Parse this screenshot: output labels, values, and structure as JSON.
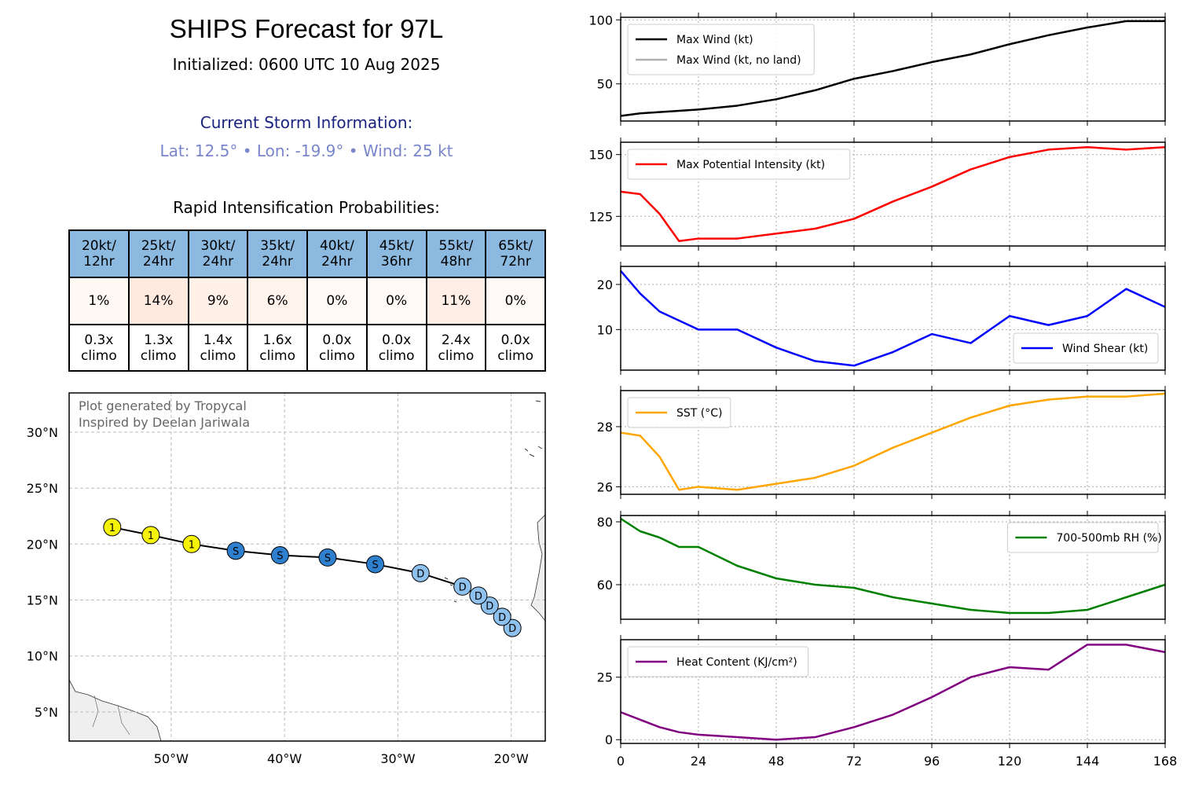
{
  "header": {
    "title": "SHIPS Forecast for 97L",
    "initialized": "Initialized: 0600 UTC 10 Aug 2025"
  },
  "storm": {
    "heading": "Current Storm Information:",
    "info": "Lat: 12.5°  • Lon: -19.9°  • Wind: 25 kt"
  },
  "ri": {
    "heading": "Rapid Intensification Probabilities:",
    "columns": [
      {
        "label": "20kt/\n12hr",
        "prob": "1%",
        "climo": "0.3x\nclimo",
        "p": 1
      },
      {
        "label": "25kt/\n24hr",
        "prob": "14%",
        "climo": "1.3x\nclimo",
        "p": 14
      },
      {
        "label": "30kt/\n24hr",
        "prob": "9%",
        "climo": "1.4x\nclimo",
        "p": 9
      },
      {
        "label": "35kt/\n24hr",
        "prob": "6%",
        "climo": "1.6x\nclimo",
        "p": 6
      },
      {
        "label": "40kt/\n24hr",
        "prob": "0%",
        "climo": "0.0x\nclimo",
        "p": 0
      },
      {
        "label": "45kt/\n36hr",
        "prob": "0%",
        "climo": "0.0x\nclimo",
        "p": 0
      },
      {
        "label": "55kt/\n48hr",
        "prob": "11%",
        "climo": "2.4x\nclimo",
        "p": 11
      },
      {
        "label": "65kt/\n72hr",
        "prob": "0%",
        "climo": "0.0x\nclimo",
        "p": 0
      }
    ]
  },
  "map": {
    "credit_line1": "Plot generated by Tropycal",
    "credit_line2": "Inspired by Deelan Jariwala",
    "lon_range": [
      -59,
      -17
    ],
    "lat_range": [
      2.4,
      33.5
    ],
    "lon_ticks": [
      -50,
      -40,
      -30,
      -20
    ],
    "lon_tick_labels": [
      "50°W",
      "40°W",
      "30°W",
      "20°W"
    ],
    "lat_ticks": [
      5,
      10,
      15,
      20,
      25,
      30
    ],
    "lat_tick_labels": [
      "5°N",
      "10°N",
      "15°N",
      "20°N",
      "25°N",
      "30°N"
    ],
    "colors": {
      "D": "#8fc1ee",
      "S": "#2f7fcf",
      "1": "#f7f307"
    },
    "track": [
      {
        "lon": -19.9,
        "lat": 12.5,
        "cat": "D"
      },
      {
        "lon": -20.8,
        "lat": 13.5,
        "cat": "D"
      },
      {
        "lon": -21.9,
        "lat": 14.5,
        "cat": "D"
      },
      {
        "lon": -22.9,
        "lat": 15.4,
        "cat": "D"
      },
      {
        "lon": -24.3,
        "lat": 16.2,
        "cat": "D"
      },
      {
        "lon": -28.0,
        "lat": 17.4,
        "cat": "D"
      },
      {
        "lon": -32.0,
        "lat": 18.2,
        "cat": "S"
      },
      {
        "lon": -36.2,
        "lat": 18.8,
        "cat": "S"
      },
      {
        "lon": -40.4,
        "lat": 19.0,
        "cat": "S"
      },
      {
        "lon": -44.3,
        "lat": 19.4,
        "cat": "S"
      },
      {
        "lon": -48.2,
        "lat": 20.0,
        "cat": "1"
      },
      {
        "lon": -51.8,
        "lat": 20.8,
        "cat": "1"
      },
      {
        "lon": -55.2,
        "lat": 21.5,
        "cat": "1"
      }
    ]
  },
  "chart_data": [
    {
      "type": "line",
      "x": [
        0,
        6,
        12,
        18,
        24,
        36,
        48,
        60,
        72,
        84,
        96,
        108,
        120,
        132,
        144,
        156,
        168
      ],
      "series": [
        {
          "name": "Max Wind (kt)",
          "color": "#000000",
          "values": [
            25,
            27,
            28,
            29,
            30,
            33,
            38,
            45,
            54,
            60,
            67,
            73,
            81,
            88,
            94,
            99,
            99
          ]
        }
      ],
      "legend_extra": [
        {
          "name": "Max Wind (kt, no land)",
          "color": "#b0b0b0"
        }
      ],
      "ylim": [
        21,
        102
      ],
      "yticks": [
        50,
        100
      ],
      "legend": "upper left"
    },
    {
      "type": "line",
      "x": [
        0,
        6,
        12,
        18,
        24,
        36,
        48,
        60,
        72,
        84,
        96,
        108,
        120,
        132,
        144,
        156,
        168
      ],
      "series": [
        {
          "name": "Max Potential Intensity (kt)",
          "color": "#ff0000",
          "values": [
            135,
            134,
            126,
            115,
            116,
            116,
            118,
            120,
            124,
            131,
            137,
            144,
            149,
            152,
            153,
            152,
            153
          ]
        }
      ],
      "ylim": [
        113,
        155
      ],
      "yticks": [
        125,
        150
      ],
      "legend": "upper left"
    },
    {
      "type": "line",
      "x": [
        0,
        6,
        12,
        18,
        24,
        36,
        48,
        60,
        72,
        84,
        96,
        108,
        120,
        132,
        144,
        156,
        168
      ],
      "series": [
        {
          "name": "Wind Shear (kt)",
          "color": "#0000ff",
          "values": [
            23,
            18,
            14,
            12,
            10,
            10,
            6,
            3,
            2,
            5,
            9,
            7,
            13,
            11,
            13,
            19,
            15
          ]
        }
      ],
      "ylim": [
        1,
        24
      ],
      "yticks": [
        10,
        20
      ],
      "legend": "lower right"
    },
    {
      "type": "line",
      "x": [
        0,
        6,
        12,
        18,
        24,
        36,
        48,
        60,
        72,
        84,
        96,
        108,
        120,
        132,
        144,
        156,
        168
      ],
      "series": [
        {
          "name": "SST (°C)",
          "color": "#ffa500",
          "values": [
            27.8,
            27.7,
            27.0,
            25.9,
            26.0,
            25.9,
            26.1,
            26.3,
            26.7,
            27.3,
            27.8,
            28.3,
            28.7,
            28.9,
            29.0,
            29.0,
            29.1
          ]
        }
      ],
      "ylim": [
        25.75,
        29.2
      ],
      "yticks": [
        26,
        28
      ],
      "legend": "upper left"
    },
    {
      "type": "line",
      "x": [
        0,
        6,
        12,
        18,
        24,
        36,
        48,
        60,
        72,
        84,
        96,
        108,
        120,
        132,
        144,
        156,
        168
      ],
      "series": [
        {
          "name": "700-500mb RH (%)",
          "color": "#008000",
          "values": [
            81,
            77,
            75,
            72,
            72,
            66,
            62,
            60,
            59,
            56,
            54,
            52,
            51,
            51,
            52,
            56,
            60
          ]
        }
      ],
      "ylim": [
        49,
        82
      ],
      "yticks": [
        60,
        80
      ],
      "legend": "upper right"
    },
    {
      "type": "line",
      "x": [
        0,
        6,
        12,
        18,
        24,
        36,
        48,
        60,
        72,
        84,
        96,
        108,
        120,
        132,
        144,
        156,
        168
      ],
      "series": [
        {
          "name": "Heat Content (KJ/cm²)",
          "color": "#800080",
          "values": [
            11,
            8,
            5,
            3,
            2,
            1,
            0,
            1,
            5,
            10,
            17,
            25,
            29,
            28,
            38,
            38,
            35
          ]
        }
      ],
      "ylim": [
        -1.5,
        40
      ],
      "yticks": [
        0,
        25
      ],
      "legend": "upper left",
      "xticks": [
        0,
        24,
        48,
        72,
        96,
        120,
        144,
        168
      ],
      "xtick_labels": [
        "0",
        "24",
        "48",
        "72",
        "96",
        "120",
        "144",
        "168"
      ]
    }
  ]
}
